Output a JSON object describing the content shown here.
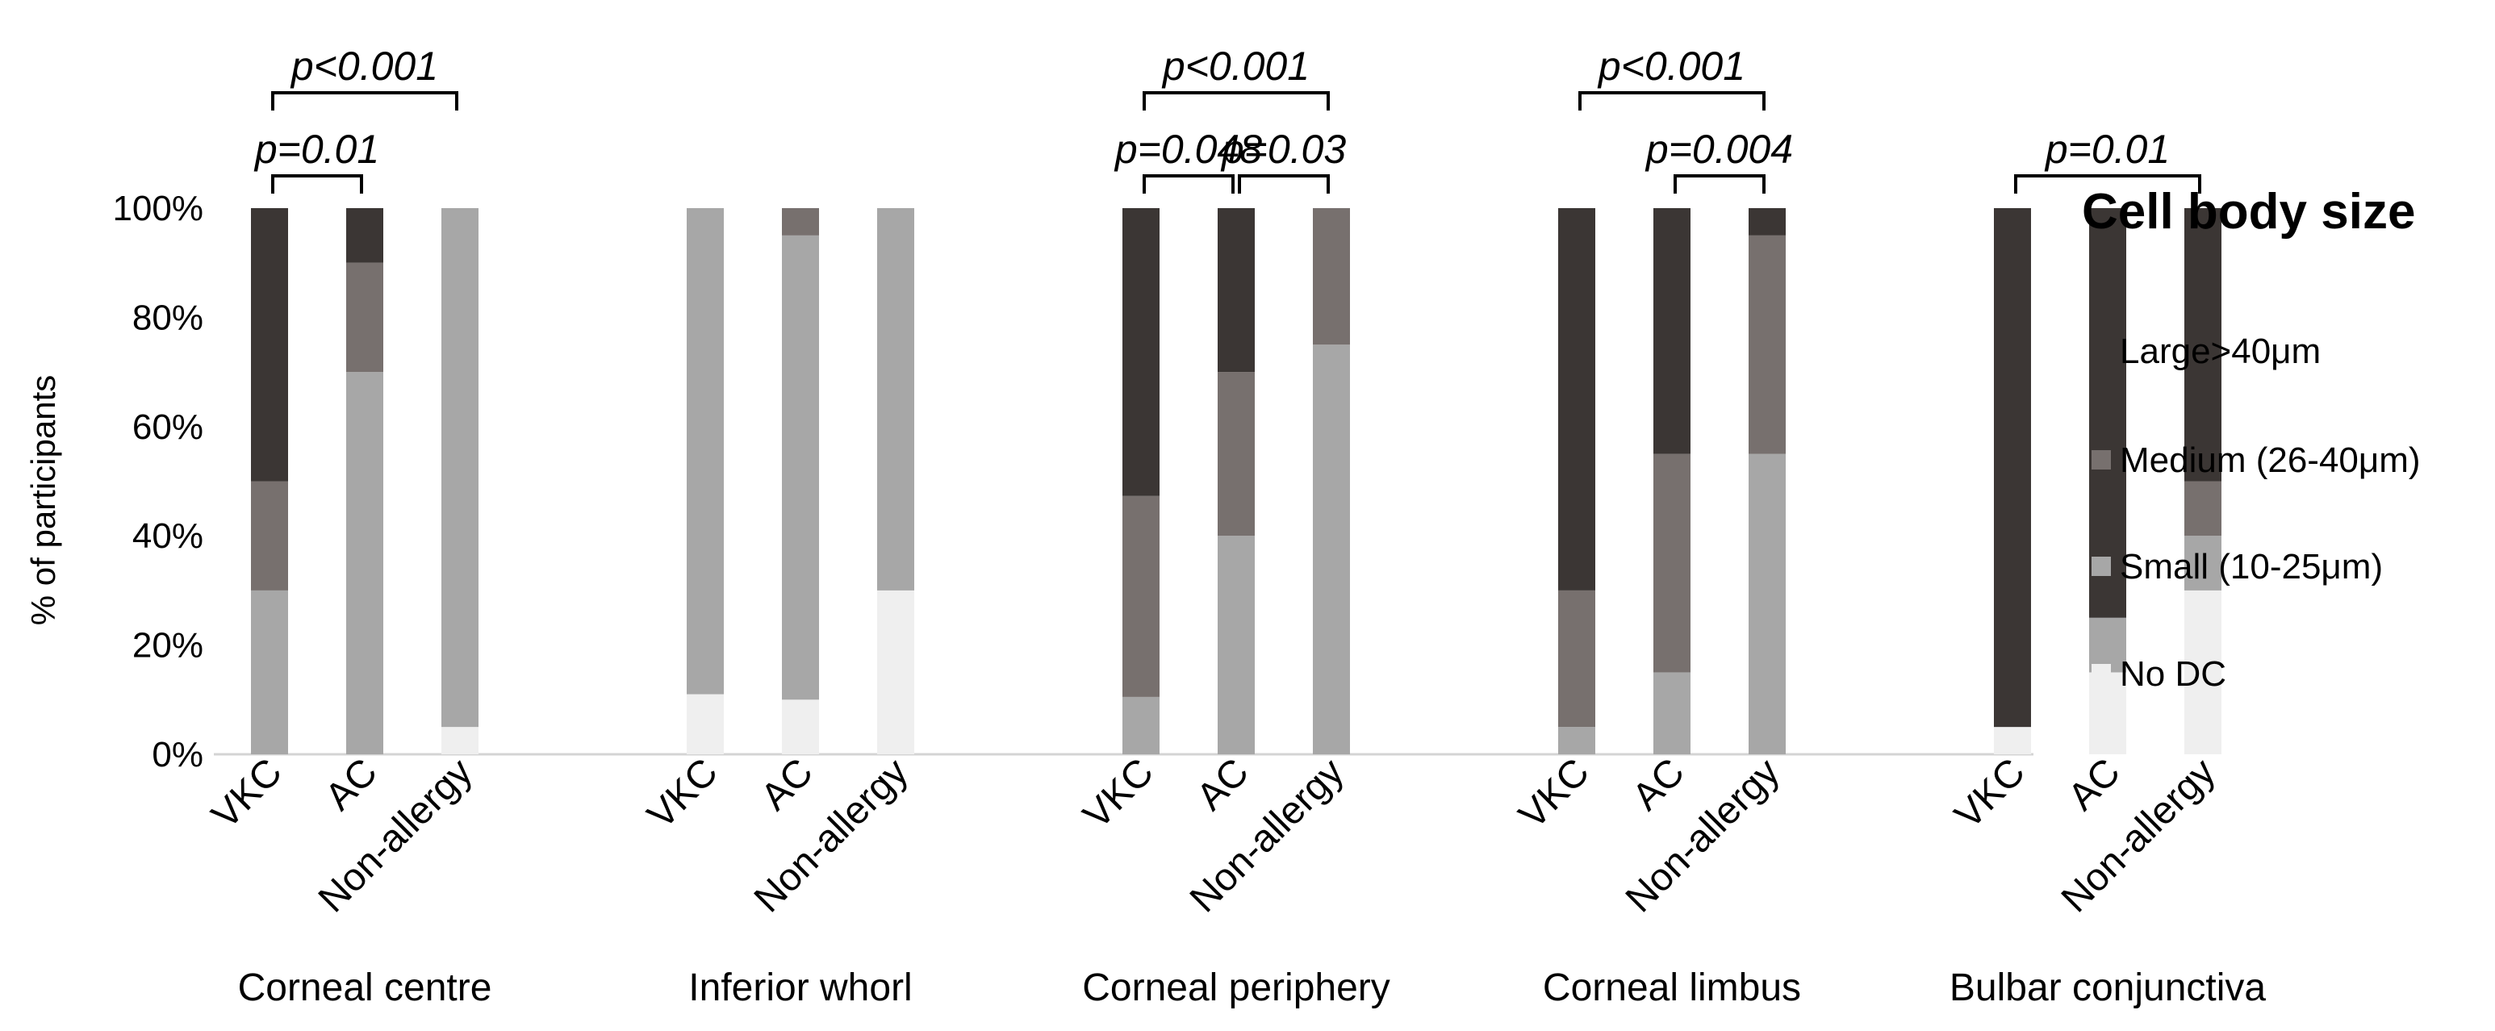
{
  "chart_data": {
    "type": "bar",
    "stacked": true,
    "ylabel": "% of participants",
    "xlabel": "",
    "ylim": [
      0,
      100
    ],
    "yticks": [
      "0%",
      "20%",
      "40%",
      "60%",
      "80%",
      "100%"
    ],
    "grid": false,
    "legend": {
      "title": "Cell body size",
      "placement": "right",
      "entries": [
        "Large>40μm",
        "Medium (26-40μm)",
        "Small (10-25μm)",
        "No DC"
      ]
    },
    "colors": {
      "Large>40μm": "#3b3634",
      "Medium (26-40μm)": "#77706e",
      "Small (10-25μm)": "#a7a7a7",
      "No DC": "#efefef"
    },
    "categories": [
      "VKC",
      "AC",
      "Non-allergy"
    ],
    "groups": [
      {
        "name": "Corneal centre",
        "bars": [
          {
            "category": "VKC",
            "values": {
              "No DC": 0,
              "Small (10-25μm)": 30,
              "Medium (26-40μm)": 20,
              "Large>40μm": 50
            }
          },
          {
            "category": "AC",
            "values": {
              "No DC": 0,
              "Small (10-25μm)": 70,
              "Medium (26-40μm)": 20,
              "Large>40μm": 10
            }
          },
          {
            "category": "Non-allergy",
            "values": {
              "No DC": 5,
              "Small (10-25μm)": 95,
              "Medium (26-40μm)": 0,
              "Large>40μm": 0
            }
          }
        ],
        "annotations": [
          {
            "label": "p=0.01",
            "from": 0,
            "to": 1,
            "level": 0
          },
          {
            "label": "p<0.001",
            "from": 0,
            "to": 2,
            "level": 1
          }
        ]
      },
      {
        "name": "Inferior whorl",
        "bars": [
          {
            "category": "VKC",
            "values": {
              "No DC": 11,
              "Small (10-25μm)": 89,
              "Medium (26-40μm)": 0,
              "Large>40μm": 0
            }
          },
          {
            "category": "AC",
            "values": {
              "No DC": 10,
              "Small (10-25μm)": 85,
              "Medium (26-40μm)": 5,
              "Large>40μm": 0
            }
          },
          {
            "category": "Non-allergy",
            "values": {
              "No DC": 30,
              "Small (10-25μm)": 70,
              "Medium (26-40μm)": 0,
              "Large>40μm": 0
            }
          }
        ],
        "annotations": []
      },
      {
        "name": "Corneal periphery",
        "bars": [
          {
            "category": "VKC",
            "values": {
              "No DC": 0,
              "Small (10-25μm)": 10.5,
              "Medium (26-40μm)": 36.8,
              "Large>40μm": 52.7
            }
          },
          {
            "category": "AC",
            "values": {
              "No DC": 0,
              "Small (10-25μm)": 40,
              "Medium (26-40μm)": 30,
              "Large>40μm": 30
            }
          },
          {
            "category": "Non-allergy",
            "values": {
              "No DC": 0,
              "Small (10-25μm)": 75,
              "Medium (26-40μm)": 25,
              "Large>40μm": 0
            }
          }
        ],
        "annotations": [
          {
            "label": "p=0.048",
            "from": 0,
            "to": 1,
            "level": 0
          },
          {
            "label": "p=0.03",
            "from": 1,
            "to": 2,
            "level": 0
          },
          {
            "label": "p<0.001",
            "from": 0,
            "to": 2,
            "level": 1
          }
        ]
      },
      {
        "name": "Corneal limbus",
        "bars": [
          {
            "category": "VKC",
            "values": {
              "No DC": 0,
              "Small (10-25μm)": 5,
              "Medium (26-40μm)": 25,
              "Large>40μm": 70
            }
          },
          {
            "category": "AC",
            "values": {
              "No DC": 0,
              "Small (10-25μm)": 15,
              "Medium (26-40μm)": 40,
              "Large>40μm": 45
            }
          },
          {
            "category": "Non-allergy",
            "values": {
              "No DC": 0,
              "Small (10-25μm)": 55,
              "Medium (26-40μm)": 40,
              "Large>40μm": 5
            }
          }
        ],
        "annotations": [
          {
            "label": "p=0.004",
            "from": 1,
            "to": 2,
            "level": 0
          },
          {
            "label": "p<0.001",
            "from": 0,
            "to": 2,
            "level": 1
          }
        ]
      },
      {
        "name": "Bulbar conjunctiva",
        "bars": [
          {
            "category": "VKC",
            "values": {
              "No DC": 5,
              "Small (10-25μm)": 0,
              "Medium (26-40μm)": 0,
              "Large>40μm": 95
            }
          },
          {
            "category": "AC",
            "values": {
              "No DC": 15,
              "Small (10-25μm)": 10,
              "Medium (26-40μm)": 0,
              "Large>40μm": 75
            }
          },
          {
            "category": "Non-allergy",
            "values": {
              "No DC": 30,
              "Small (10-25μm)": 10,
              "Medium (26-40μm)": 10,
              "Large>40μm": 50
            }
          }
        ],
        "annotations": [
          {
            "label": "p=0.01",
            "from": 0,
            "to": 2,
            "level": 0
          }
        ]
      }
    ]
  }
}
